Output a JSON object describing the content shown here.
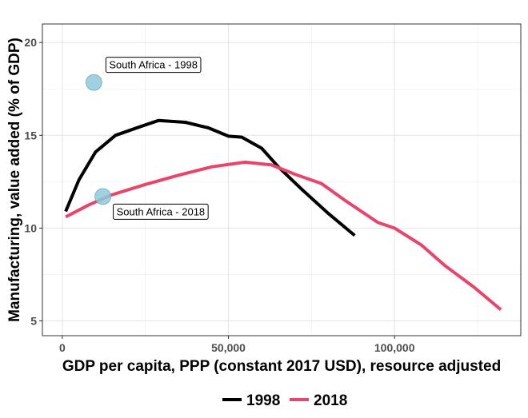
{
  "chart_data": {
    "type": "line",
    "xlabel": "GDP per capita, PPP (constant 2017 USD), resource adjusted",
    "ylabel": "Manufacturing, value added (% of GDP)",
    "xlim": [
      -6000,
      138000
    ],
    "ylim": [
      4.2,
      21.0
    ],
    "x_ticks": [
      0,
      50000,
      100000
    ],
    "x_tick_labels": [
      "0",
      "50,000",
      "100,000"
    ],
    "y_ticks": [
      5,
      10,
      15,
      20
    ],
    "y_tick_labels": [
      "5",
      "10",
      "15",
      "20"
    ],
    "grid": true,
    "legend_position": "bottom",
    "series": [
      {
        "name": "1998",
        "color": "#000000",
        "x": [
          1000,
          5000,
          10000,
          16000,
          24000,
          29000,
          37000,
          44000,
          50000,
          54000,
          60000,
          65000,
          72000,
          80000,
          88000
        ],
        "y": [
          10.9,
          12.6,
          14.1,
          15.0,
          15.5,
          15.8,
          15.7,
          15.4,
          14.95,
          14.9,
          14.3,
          13.3,
          12.1,
          10.8,
          9.6
        ]
      },
      {
        "name": "2018",
        "color": "#e8456a",
        "x": [
          1000,
          8000,
          15000,
          25000,
          35000,
          45000,
          55000,
          63000,
          70000,
          78000,
          85000,
          95000,
          100000,
          108000,
          115000,
          124000,
          132000
        ],
        "y": [
          10.6,
          11.25,
          11.8,
          12.35,
          12.85,
          13.3,
          13.55,
          13.4,
          12.9,
          12.4,
          11.5,
          10.3,
          10.0,
          9.1,
          8.0,
          6.8,
          5.6
        ]
      }
    ],
    "points": [
      {
        "label": "South Africa - 1998",
        "x": 9500,
        "y": 17.85,
        "color": "#8fc9da"
      },
      {
        "label": "South Africa - 2018",
        "x": 12200,
        "y": 11.7,
        "color": "#8fc9da"
      }
    ]
  }
}
